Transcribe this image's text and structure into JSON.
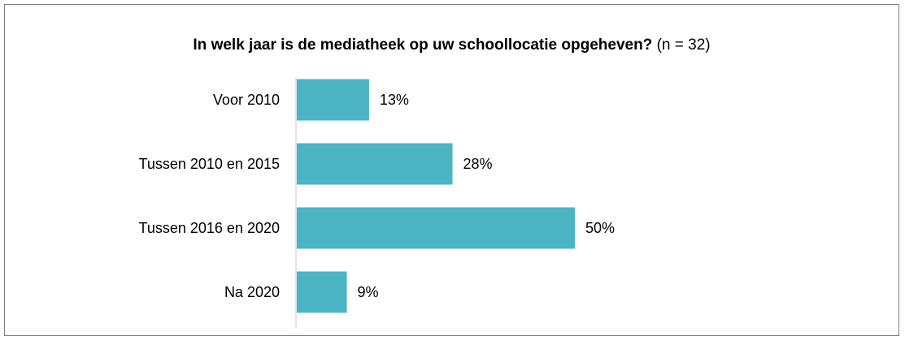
{
  "chart_data": {
    "type": "bar",
    "orientation": "horizontal",
    "title": "In welk jaar is de mediatheek op uw schoollocatie opgeheven?",
    "subtitle": "(n = 32)",
    "categories": [
      "Voor 2010",
      "Tussen 2010 en 2015",
      "Tussen 2016 en 2020",
      "Na 2020"
    ],
    "values": [
      13,
      28,
      50,
      9
    ],
    "value_labels": [
      "13%",
      "28%",
      "50%",
      "9%"
    ],
    "unit": "%",
    "xlim": [
      0,
      100
    ],
    "xlabel": "",
    "ylabel": "",
    "grid": false,
    "legend": "none",
    "bar_color": "#4bb5c4",
    "axis_color": "#d9d9d9",
    "frame_color": "#7f7f7f"
  }
}
